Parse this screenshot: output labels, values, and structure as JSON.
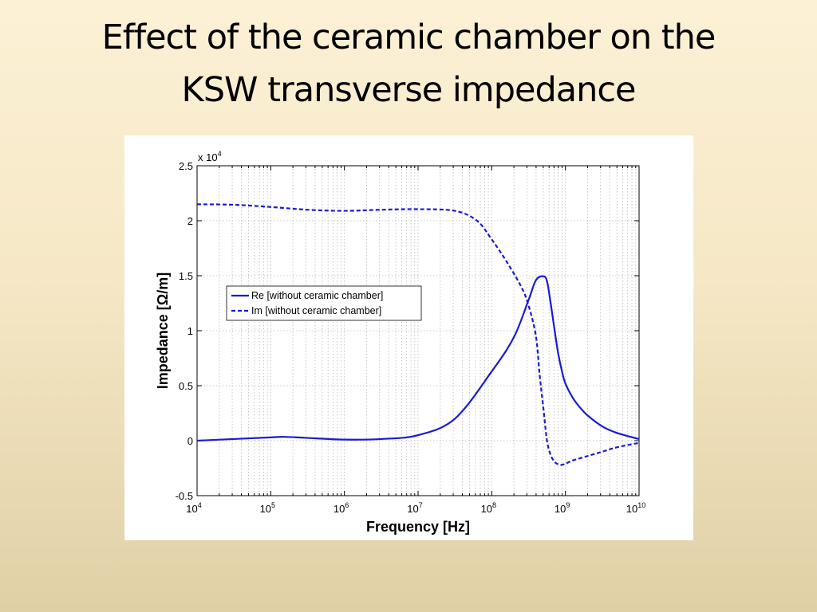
{
  "slide": {
    "title_line1": "Effect of the ceramic chamber on the",
    "title_line2": "KSW transverse impedance"
  },
  "chart_data": {
    "type": "line",
    "xlabel": "Frequency [Hz]",
    "ylabel": "Impedance [Ω/m]",
    "x_scale": "log",
    "xlim": [
      10000,
      10000000000
    ],
    "ylim": [
      -5000,
      25000
    ],
    "y_multiplier_label": "x 10",
    "y_multiplier_exponent": "4",
    "grid": true,
    "legend_position": "upper-left",
    "x_ticks": [
      {
        "base": "10",
        "exp": "4",
        "value": 10000
      },
      {
        "base": "10",
        "exp": "5",
        "value": 100000
      },
      {
        "base": "10",
        "exp": "6",
        "value": 1000000
      },
      {
        "base": "10",
        "exp": "7",
        "value": 10000000
      },
      {
        "base": "10",
        "exp": "8",
        "value": 100000000
      },
      {
        "base": "10",
        "exp": "9",
        "value": 1000000000
      },
      {
        "base": "10",
        "exp": "10",
        "value": 10000000000
      }
    ],
    "y_ticks": [
      {
        "label": "-0.5",
        "value": -5000
      },
      {
        "label": "0",
        "value": 0
      },
      {
        "label": "0.5",
        "value": 5000
      },
      {
        "label": "1",
        "value": 10000
      },
      {
        "label": "1.5",
        "value": 15000
      },
      {
        "label": "2",
        "value": 20000
      },
      {
        "label": "2.5",
        "value": 25000
      }
    ],
    "series": [
      {
        "name": "Re [without ceramic chamber]",
        "style": "solid",
        "color": "#1a1ad6",
        "x": [
          10000,
          31623,
          100000,
          150000,
          316228,
          1000000,
          3162278,
          10000000,
          31622776,
          100000000,
          199526231,
          316227766,
          398107171,
          501187234,
          562341325,
          630957344,
          707945784,
          794328235,
          891250938,
          1000000000,
          1258925412,
          1584893192,
          1995262315,
          3162277660,
          5011872336,
          10000000000
        ],
        "y": [
          0,
          150,
          300,
          350,
          250,
          100,
          150,
          500,
          2000,
          6300,
          9400,
          12800,
          14600,
          14950,
          14500,
          12500,
          10200,
          8000,
          6400,
          5200,
          3900,
          3000,
          2300,
          1300,
          700,
          150
        ]
      },
      {
        "name": "Im [without ceramic chamber]",
        "style": "dashed",
        "color": "#1a1ad6",
        "x": [
          10000,
          31623,
          100000,
          316228,
          1000000,
          3162278,
          10000000,
          31622776,
          63095734,
          100000000,
          158489319,
          251188643,
          316227766,
          398107171,
          446683592,
          501187234,
          562341325,
          630957344,
          707945784,
          794328235,
          891250938,
          1000000000,
          1258925412,
          1995262315,
          3162277660,
          5011872336,
          10000000000
        ],
        "y": [
          21500,
          21450,
          21250,
          21000,
          20900,
          21000,
          21050,
          20900,
          20000,
          18300,
          16300,
          14000,
          12300,
          9500,
          6000,
          3000,
          0,
          -1300,
          -1900,
          -2150,
          -2200,
          -2100,
          -1800,
          -1400,
          -1000,
          -600,
          -200
        ]
      }
    ]
  }
}
